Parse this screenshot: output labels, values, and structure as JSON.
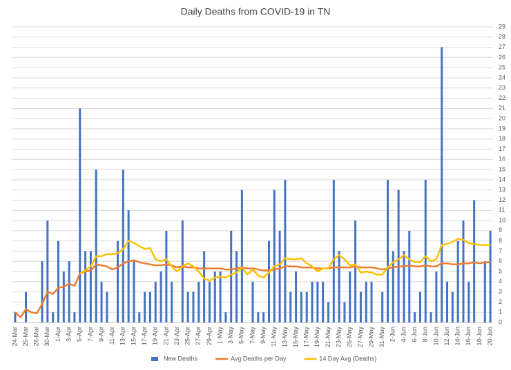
{
  "chart_data": {
    "type": "bar",
    "title": "Daily Deaths from COVID-19 in TN",
    "categories": [
      "24-Mar",
      null,
      "26-Mar",
      null,
      "28-Mar",
      null,
      "30-Mar",
      null,
      "1-Apr",
      null,
      "3-Apr",
      null,
      "5-Apr",
      null,
      "7-Apr",
      null,
      "9-Apr",
      null,
      "11-Apr",
      null,
      "13-Apr",
      null,
      "15-Apr",
      null,
      "17-Apr",
      null,
      "19-Apr",
      null,
      "21-Apr",
      null,
      "23-Apr",
      null,
      "25-Apr",
      null,
      "27-Apr",
      null,
      "29-Apr",
      null,
      "1-May",
      null,
      "3-May",
      null,
      "5-May",
      null,
      "7-May",
      null,
      "9-May",
      null,
      "11-May",
      null,
      "13-May",
      null,
      "15-May",
      null,
      "17-May",
      null,
      "19-May",
      null,
      "21-May",
      null,
      "23-May",
      null,
      "25-May",
      null,
      "27-May",
      null,
      "29-May",
      null,
      "31-May",
      null,
      "2-Jun",
      null,
      "4-Jun",
      null,
      "6-Jun",
      null,
      "8-Jun",
      null,
      "10-Jun",
      null,
      "12-Jun",
      null,
      "14-Jun",
      null,
      "16-Jun",
      null,
      "18-Jun",
      null,
      "20-Jun"
    ],
    "series": [
      {
        "name": "New Deaths",
        "kind": "bar",
        "color": "#4472c4",
        "values": [
          1,
          0,
          3,
          0,
          0,
          6,
          10,
          1,
          8,
          5,
          6,
          1,
          21,
          7,
          7,
          15,
          4,
          3,
          0,
          8,
          15,
          11,
          6,
          1,
          3,
          3,
          4,
          5,
          9,
          4,
          0,
          10,
          3,
          3,
          4,
          7,
          4,
          5,
          5,
          1,
          9,
          7,
          13,
          0,
          4,
          1,
          1,
          8,
          13,
          9,
          14,
          3,
          5,
          3,
          3,
          4,
          4,
          4,
          2,
          14,
          7,
          2,
          5,
          10,
          3,
          4,
          4,
          0,
          3,
          14,
          7,
          13,
          7,
          9,
          1,
          3,
          14,
          1,
          5,
          27,
          4,
          3,
          8,
          10,
          4,
          12,
          0,
          6,
          9
        ]
      },
      {
        "name": "Avg Deaths per Day",
        "kind": "line",
        "color": "#ed7d31",
        "values": [
          1,
          0.5,
          1.3,
          1,
          0.9,
          1.8,
          3,
          2.8,
          3.4,
          3.5,
          3.8,
          3.6,
          4.8,
          5,
          5.1,
          5.7,
          5.6,
          5.5,
          5.2,
          5.4,
          5.8,
          6,
          6.1,
          5.9,
          5.8,
          5.7,
          5.6,
          5.6,
          5.7,
          5.6,
          5.4,
          5.5,
          5.4,
          5.4,
          5.3,
          5.3,
          5.3,
          5.3,
          5.3,
          5.2,
          5.2,
          5.3,
          5.4,
          5.3,
          5.3,
          5.2,
          5.1,
          5.1,
          5.2,
          5.3,
          5.5,
          5.5,
          5.5,
          5.4,
          5.4,
          5.4,
          5.3,
          5.3,
          5.3,
          5.4,
          5.4,
          5.4,
          5.4,
          5.5,
          5.4,
          5.4,
          5.4,
          5.3,
          5.2,
          5.3,
          5.4,
          5.5,
          5.5,
          5.6,
          5.5,
          5.5,
          5.6,
          5.5,
          5.5,
          5.8,
          5.8,
          5.7,
          5.7,
          5.8,
          5.8,
          5.9,
          5.8,
          5.9,
          5.9
        ]
      },
      {
        "name": "14 Day Avg (Deaths)",
        "kind": "line",
        "color": "#ffc000",
        "values": [
          null,
          null,
          null,
          null,
          null,
          null,
          null,
          null,
          null,
          null,
          null,
          null,
          4.8,
          5.1,
          5.5,
          6.5,
          6.5,
          6.7,
          6.7,
          6.8,
          7.2,
          8,
          7.8,
          7.5,
          7.2,
          7.3,
          6.2,
          6,
          6.2,
          5.5,
          5,
          5.5,
          5.8,
          5.5,
          5,
          4.3,
          4.1,
          4.4,
          4.5,
          4.4,
          4.7,
          4.9,
          5.4,
          4.7,
          5.2,
          4.6,
          4.4,
          4.9,
          5.5,
          5.7,
          6.3,
          6.2,
          6.2,
          6.3,
          5.8,
          5.5,
          5,
          5.3,
          5.3,
          6.2,
          6.6,
          6.2,
          5.6,
          5.7,
          4.9,
          5,
          4.9,
          4.7,
          4.7,
          5.4,
          5.9,
          6.2,
          6.6,
          6.2,
          5.9,
          5.9,
          6.5,
          6,
          6.2,
          7.6,
          7.7,
          7.9,
          8.2,
          8.1,
          7.8,
          7.7,
          7.6,
          7.6,
          7.6
        ]
      }
    ],
    "ylim": [
      0,
      29
    ],
    "yticks": [
      0,
      1,
      2,
      3,
      4,
      5,
      6,
      7,
      8,
      9,
      10,
      11,
      12,
      13,
      14,
      15,
      16,
      17,
      18,
      19,
      20,
      21,
      22,
      23,
      24,
      25,
      26,
      27,
      28,
      29
    ],
    "grid": true,
    "legend": "bottom"
  }
}
